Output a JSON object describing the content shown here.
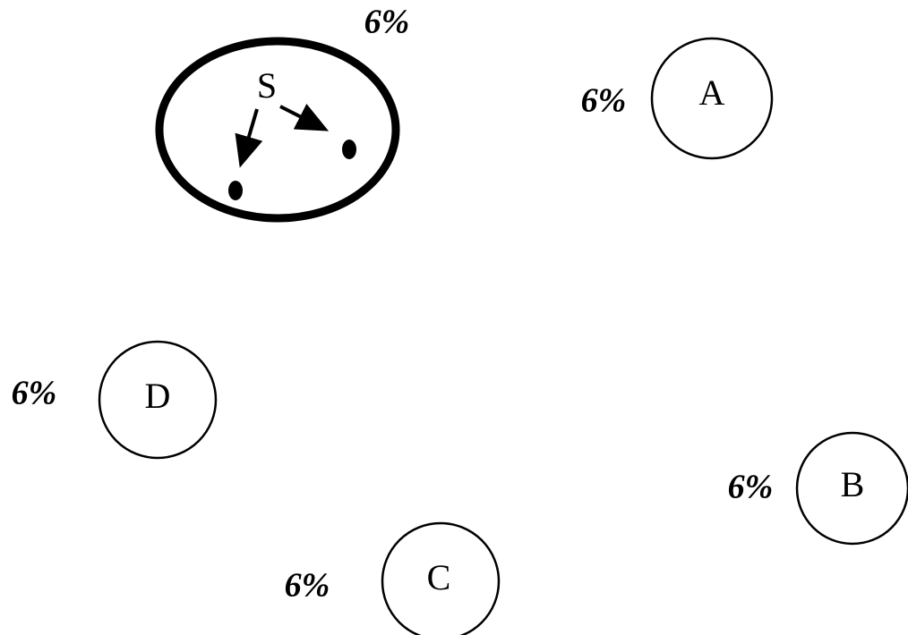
{
  "nodes": [
    {
      "label": "S",
      "percent": "6%"
    },
    {
      "label": "A",
      "percent": "6%"
    },
    {
      "label": "D",
      "percent": "6%"
    },
    {
      "label": "B",
      "percent": "6%"
    },
    {
      "label": "C",
      "percent": "6%"
    }
  ]
}
